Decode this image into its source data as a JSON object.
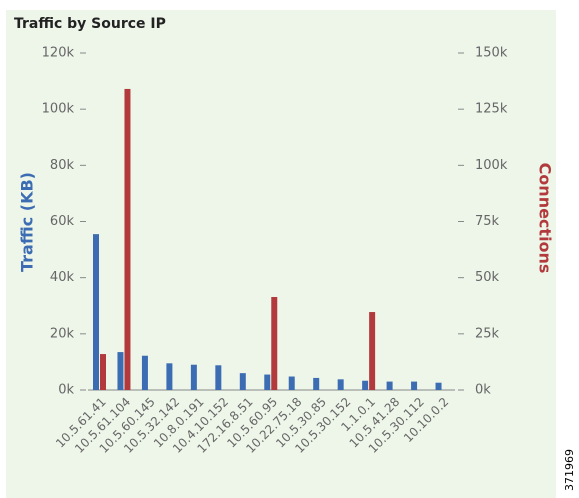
{
  "chart_data": {
    "type": "bar",
    "title": "Traffic by Source IP",
    "y_label": "Traffic (KB)",
    "y2_label": "Connections",
    "annotation": "371969",
    "categories": [
      "10.5.61.41",
      "10.5.61.104",
      "10.5.60.145",
      "10.5.32.142",
      "10.8.0.191",
      "10.4.10.152",
      "172.16.8.51",
      "10.5.60.95",
      "10.22.75.18",
      "10.5.30.85",
      "10.5.30.152",
      "1.1.0.1",
      "10.5.41.28",
      "10.5.30.112",
      "10.10.0.2"
    ],
    "series": [
      {
        "name": "Traffic (KB)",
        "color": "#3c6db3",
        "values": [
          55500,
          13500,
          12200,
          9500,
          9000,
          8800,
          6000,
          5500,
          4800,
          4300,
          3800,
          3300,
          3000,
          3000,
          2600
        ]
      },
      {
        "name": "Connections",
        "color": "#b23a3c",
        "axis": "y2",
        "values": [
          16000,
          134000,
          null,
          null,
          null,
          null,
          null,
          41400,
          null,
          null,
          null,
          34700,
          null,
          null,
          null
        ]
      }
    ],
    "ylim": [
      0,
      120000
    ],
    "yticks": [
      {
        "value": 0,
        "label": "0k"
      },
      {
        "value": 20000,
        "label": "20k"
      },
      {
        "value": 40000,
        "label": "40k"
      },
      {
        "value": 60000,
        "label": "60k"
      },
      {
        "value": 80000,
        "label": "80k"
      },
      {
        "value": 100000,
        "label": "100k"
      },
      {
        "value": 120000,
        "label": "120k"
      }
    ],
    "y2lim": [
      0,
      150000
    ],
    "y2ticks": [
      {
        "value": 0,
        "label": "0k"
      },
      {
        "value": 25000,
        "label": "25k"
      },
      {
        "value": 50000,
        "label": "50k"
      },
      {
        "value": 75000,
        "label": "75k"
      },
      {
        "value": 100000,
        "label": "100k"
      },
      {
        "value": 125000,
        "label": "125k"
      },
      {
        "value": 150000,
        "label": "150k"
      }
    ]
  }
}
